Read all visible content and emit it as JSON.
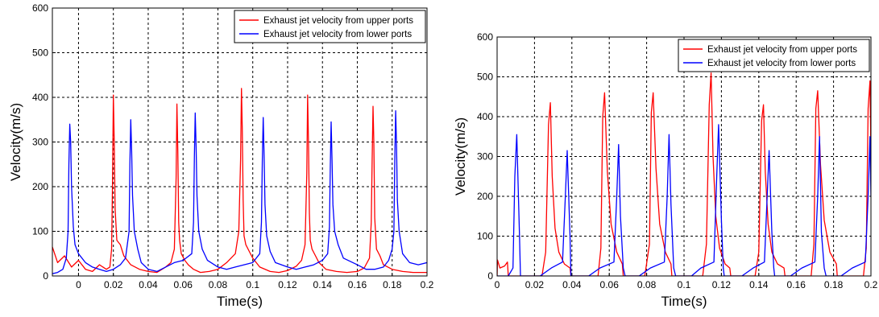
{
  "chart_data": [
    {
      "type": "line",
      "xlabel": "Time(s)",
      "ylabel": "Velocity(m/s)",
      "xlim": [
        -0.015,
        0.2
      ],
      "ylim": [
        0,
        600
      ],
      "xticks": [
        0,
        0.02,
        0.04,
        0.06,
        0.08,
        0.1,
        0.12,
        0.14,
        0.16,
        0.18,
        0.2
      ],
      "xtick_labels": [
        "0",
        "0.02",
        "0.04",
        "0.06",
        "0.08",
        "0.1",
        "0.12",
        "0.14",
        "0.16",
        "0.18",
        "0.2"
      ],
      "yticks": [
        0,
        100,
        200,
        300,
        400,
        500,
        600
      ],
      "ytick_labels": [
        "0",
        "100",
        "200",
        "300",
        "400",
        "500",
        "600"
      ],
      "grid": true,
      "legend_position": "top-right",
      "series": [
        {
          "name": "Exhaust jet velocity from upper ports",
          "color": "#ff0000",
          "x": [
            -0.015,
            -0.012,
            -0.008,
            -0.004,
            0.0,
            0.004,
            0.008,
            0.012,
            0.016,
            0.018,
            0.019,
            0.0195,
            0.02,
            0.0205,
            0.021,
            0.022,
            0.024,
            0.026,
            0.03,
            0.035,
            0.04,
            0.045,
            0.05,
            0.053,
            0.055,
            0.056,
            0.0565,
            0.057,
            0.0575,
            0.058,
            0.059,
            0.061,
            0.063,
            0.066,
            0.07,
            0.075,
            0.08,
            0.085,
            0.09,
            0.092,
            0.093,
            0.0935,
            0.094,
            0.0945,
            0.095,
            0.096,
            0.098,
            0.1,
            0.104,
            0.11,
            0.115,
            0.12,
            0.125,
            0.128,
            0.13,
            0.131,
            0.1315,
            0.132,
            0.1325,
            0.133,
            0.134,
            0.136,
            0.138,
            0.142,
            0.148,
            0.154,
            0.16,
            0.164,
            0.167,
            0.168,
            0.1685,
            0.169,
            0.1695,
            0.17,
            0.171,
            0.173,
            0.175,
            0.18,
            0.186,
            0.192,
            0.2
          ],
          "y": [
            65,
            30,
            45,
            20,
            35,
            15,
            10,
            25,
            15,
            20,
            60,
            200,
            405,
            300,
            150,
            80,
            70,
            45,
            25,
            15,
            10,
            8,
            20,
            30,
            60,
            220,
            385,
            280,
            120,
            80,
            50,
            35,
            25,
            15,
            8,
            10,
            15,
            30,
            50,
            100,
            260,
            420,
            330,
            170,
            90,
            70,
            55,
            40,
            20,
            10,
            8,
            12,
            22,
            35,
            70,
            230,
            405,
            300,
            140,
            80,
            60,
            45,
            30,
            15,
            10,
            8,
            10,
            18,
            40,
            120,
            260,
            380,
            300,
            130,
            60,
            45,
            25,
            15,
            10,
            8,
            8
          ]
        },
        {
          "name": "Exhaust jet velocity from lower ports",
          "color": "#0000ff",
          "x": [
            -0.015,
            -0.012,
            -0.009,
            -0.007,
            -0.006,
            -0.0055,
            -0.005,
            -0.0045,
            -0.004,
            -0.003,
            -0.002,
            0.0,
            0.004,
            0.008,
            0.012,
            0.016,
            0.02,
            0.024,
            0.027,
            0.029,
            0.0295,
            0.03,
            0.0305,
            0.031,
            0.032,
            0.034,
            0.036,
            0.04,
            0.045,
            0.05,
            0.055,
            0.06,
            0.065,
            0.066,
            0.0665,
            0.067,
            0.0675,
            0.068,
            0.069,
            0.071,
            0.074,
            0.08,
            0.085,
            0.09,
            0.095,
            0.1,
            0.104,
            0.105,
            0.1055,
            0.106,
            0.1065,
            0.107,
            0.108,
            0.11,
            0.113,
            0.12,
            0.125,
            0.13,
            0.135,
            0.14,
            0.143,
            0.144,
            0.1445,
            0.145,
            0.1455,
            0.146,
            0.147,
            0.149,
            0.152,
            0.16,
            0.165,
            0.17,
            0.175,
            0.178,
            0.18,
            0.181,
            0.1815,
            0.182,
            0.1825,
            0.183,
            0.184,
            0.186,
            0.19,
            0.195,
            0.2
          ],
          "y": [
            5,
            8,
            15,
            40,
            100,
            250,
            340,
            300,
            200,
            110,
            70,
            50,
            30,
            20,
            15,
            10,
            15,
            25,
            40,
            100,
            250,
            350,
            280,
            180,
            100,
            60,
            30,
            15,
            10,
            20,
            30,
            35,
            50,
            120,
            270,
            365,
            290,
            180,
            100,
            60,
            35,
            20,
            15,
            20,
            25,
            30,
            50,
            120,
            260,
            355,
            270,
            160,
            90,
            55,
            30,
            20,
            15,
            20,
            25,
            35,
            50,
            110,
            250,
            345,
            260,
            160,
            100,
            70,
            40,
            25,
            15,
            15,
            20,
            35,
            60,
            100,
            260,
            370,
            290,
            170,
            100,
            50,
            30,
            25,
            30
          ]
        }
      ]
    },
    {
      "type": "line",
      "xlabel": "Time(s)",
      "ylabel": "Velocity(m/s)",
      "xlim": [
        0,
        0.2
      ],
      "ylim": [
        0,
        600
      ],
      "xticks": [
        0,
        0.02,
        0.04,
        0.06,
        0.08,
        0.1,
        0.12,
        0.14,
        0.16,
        0.18,
        0.2
      ],
      "xtick_labels": [
        "0",
        "0.02",
        "0.04",
        "0.06",
        "0.08",
        "0.1",
        "0.12",
        "0.14",
        "0.16",
        "0.18",
        "0.2"
      ],
      "yticks": [
        0,
        100,
        200,
        300,
        400,
        500,
        600
      ],
      "ytick_labels": [
        "0",
        "100",
        "200",
        "300",
        "400",
        "500",
        "600"
      ],
      "grid": true,
      "legend_position": "top-right",
      "series": [
        {
          "name": "Exhaust jet velocity from upper ports",
          "color": "#ff0000",
          "x": [
            0,
            0.0002,
            0.0015,
            0.004,
            0.0055,
            0.006,
            0.012,
            0.016,
            0.02,
            0.024,
            0.026,
            0.0275,
            0.0285,
            0.0295,
            0.031,
            0.033,
            0.036,
            0.039,
            0.0395,
            0.04,
            0.044,
            0.048,
            0.052,
            0.054,
            0.0555,
            0.0565,
            0.0575,
            0.059,
            0.061,
            0.064,
            0.067,
            0.0675,
            0.068,
            0.072,
            0.076,
            0.079,
            0.0815,
            0.0825,
            0.0835,
            0.085,
            0.087,
            0.09,
            0.093,
            0.0935,
            0.094,
            0.098,
            0.102,
            0.106,
            0.11,
            0.112,
            0.1135,
            0.1145,
            0.1155,
            0.117,
            0.119,
            0.122,
            0.1245,
            0.125,
            0.13,
            0.134,
            0.138,
            0.14,
            0.1415,
            0.1425,
            0.1435,
            0.145,
            0.147,
            0.15,
            0.1535,
            0.154,
            0.158,
            0.162,
            0.166,
            0.168,
            0.1695,
            0.1705,
            0.1715,
            0.173,
            0.175,
            0.178,
            0.1815,
            0.182,
            0.186,
            0.19,
            0.194,
            0.196,
            0.1975,
            0.1985,
            0.1995,
            0.2
          ],
          "y": [
            0,
            40,
            20,
            25,
            35,
            0,
            0,
            0,
            0,
            0,
            60,
            380,
            435,
            250,
            120,
            60,
            30,
            20,
            0,
            0,
            0,
            0,
            0,
            0,
            70,
            400,
            460,
            260,
            130,
            60,
            30,
            0,
            0,
            0,
            0,
            0,
            80,
            410,
            460,
            270,
            130,
            60,
            30,
            0,
            0,
            0,
            0,
            0,
            0,
            80,
            430,
            510,
            300,
            150,
            70,
            30,
            20,
            0,
            0,
            0,
            0,
            60,
            390,
            430,
            260,
            130,
            60,
            30,
            20,
            0,
            0,
            0,
            0,
            0,
            80,
            420,
            465,
            280,
            140,
            60,
            30,
            0,
            0,
            0,
            0,
            0,
            70,
            420,
            490,
            300
          ]
        },
        {
          "name": "Exhaust jet velocity from lower ports",
          "color": "#0000ff",
          "x": [
            0,
            0.006,
            0.0085,
            0.0095,
            0.0105,
            0.012,
            0.0125,
            0.013,
            0.022,
            0.023,
            0.029,
            0.035,
            0.0365,
            0.0375,
            0.039,
            0.0395,
            0.04,
            0.048,
            0.049,
            0.055,
            0.0625,
            0.064,
            0.065,
            0.066,
            0.0675,
            0.0685,
            0.069,
            0.075,
            0.076,
            0.082,
            0.0895,
            0.091,
            0.092,
            0.093,
            0.0945,
            0.0955,
            0.096,
            0.103,
            0.104,
            0.109,
            0.116,
            0.1175,
            0.1185,
            0.12,
            0.121,
            0.1215,
            0.13,
            0.131,
            0.137,
            0.143,
            0.1445,
            0.1455,
            0.147,
            0.148,
            0.1485,
            0.156,
            0.157,
            0.163,
            0.17,
            0.1715,
            0.1725,
            0.1735,
            0.175,
            0.176,
            0.1765,
            0.183,
            0.184,
            0.19,
            0.197,
            0.1985,
            0.1995,
            0.2
          ],
          "y": [
            0,
            0,
            20,
            250,
            355,
            100,
            0,
            0,
            0,
            0,
            20,
            35,
            200,
            315,
            100,
            0,
            0,
            0,
            0,
            20,
            35,
            200,
            330,
            150,
            20,
            0,
            0,
            0,
            0,
            20,
            35,
            200,
            355,
            180,
            20,
            0,
            0,
            0,
            0,
            20,
            35,
            250,
            380,
            140,
            20,
            0,
            0,
            0,
            20,
            35,
            200,
            315,
            110,
            20,
            0,
            0,
            0,
            20,
            35,
            200,
            350,
            110,
            20,
            0,
            0,
            0,
            0,
            20,
            35,
            200,
            350,
            200
          ]
        }
      ]
    }
  ]
}
